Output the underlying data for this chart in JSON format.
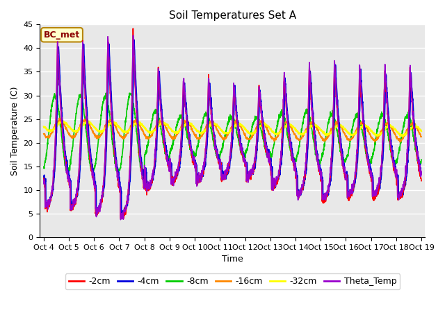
{
  "title": "Soil Temperatures Set A",
  "xlabel": "Time",
  "ylabel": "Soil Temperature (C)",
  "ylim": [
    0,
    45
  ],
  "annotation": "BC_met",
  "legend_entries": [
    "-2cm",
    "-4cm",
    "-8cm",
    "-16cm",
    "-32cm",
    "Theta_Temp"
  ],
  "line_colors": [
    "#ff0000",
    "#0000dd",
    "#00cc00",
    "#ff8800",
    "#ffff00",
    "#9900cc"
  ],
  "fig_facecolor": "#ffffff",
  "ax_facecolor": "#e8e8e8",
  "xtick_labels": [
    "Oct 4",
    "Oct 5",
    "Oct 6",
    "Oct 7",
    "Oct 8",
    "Oct 9",
    "Oct 10",
    "Oct 11",
    "Oct 12",
    "Oct 13",
    "Oct 14",
    "Oct 15",
    "Oct 16",
    "Oct 17",
    "Oct 18",
    "Oct 19"
  ],
  "ytick_values": [
    0,
    5,
    10,
    15,
    20,
    25,
    30,
    35,
    40,
    45
  ],
  "grid_color": "#d0d0d0",
  "linewidth": 1.2
}
